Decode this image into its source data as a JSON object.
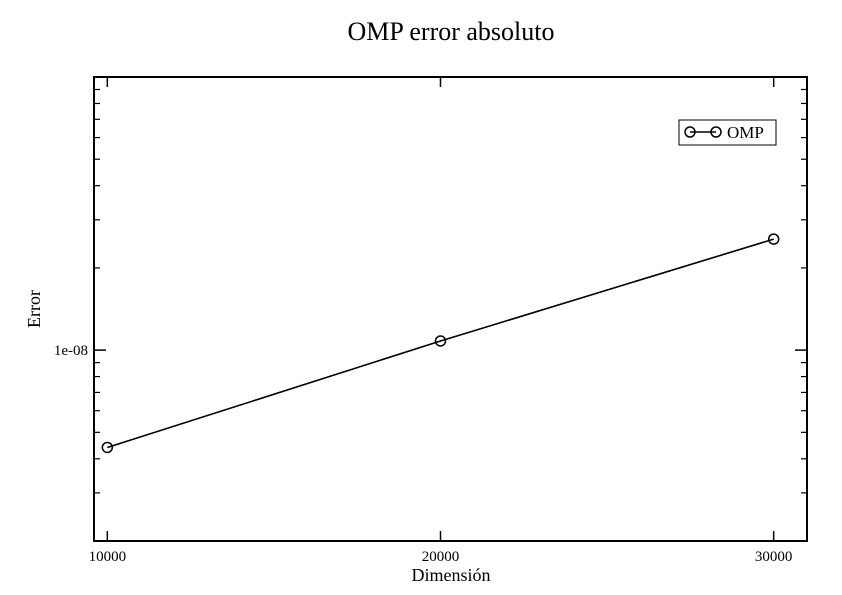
{
  "chart_data": {
    "type": "line",
    "title": "OMP error absoluto",
    "xlabel": "Dimensión",
    "ylabel": "Error",
    "xscale": "linear",
    "yscale": "log",
    "xlim": [
      9600,
      31000
    ],
    "ylim": [
      2e-09,
      1e-07
    ],
    "x_ticks": [
      10000,
      20000,
      30000
    ],
    "x_tick_labels": [
      "10000",
      "20000",
      "30000"
    ],
    "y_major_ticks": [
      1e-08
    ],
    "y_tick_labels": [
      "1e-08"
    ],
    "y_minor_ticks": [
      3e-09,
      4e-09,
      5e-09,
      6e-09,
      7e-09,
      8e-09,
      9e-09,
      2e-08,
      3e-08,
      4e-08,
      5e-08,
      6e-08,
      7e-08,
      8e-08,
      9e-08
    ],
    "grid": false,
    "legend_position": "top-right",
    "series": [
      {
        "name": "OMP",
        "color": "#000000",
        "marker": "circle",
        "x": [
          10000,
          20000,
          30000
        ],
        "y": [
          4.4e-09,
          1.08e-08,
          2.55e-08
        ]
      }
    ]
  }
}
